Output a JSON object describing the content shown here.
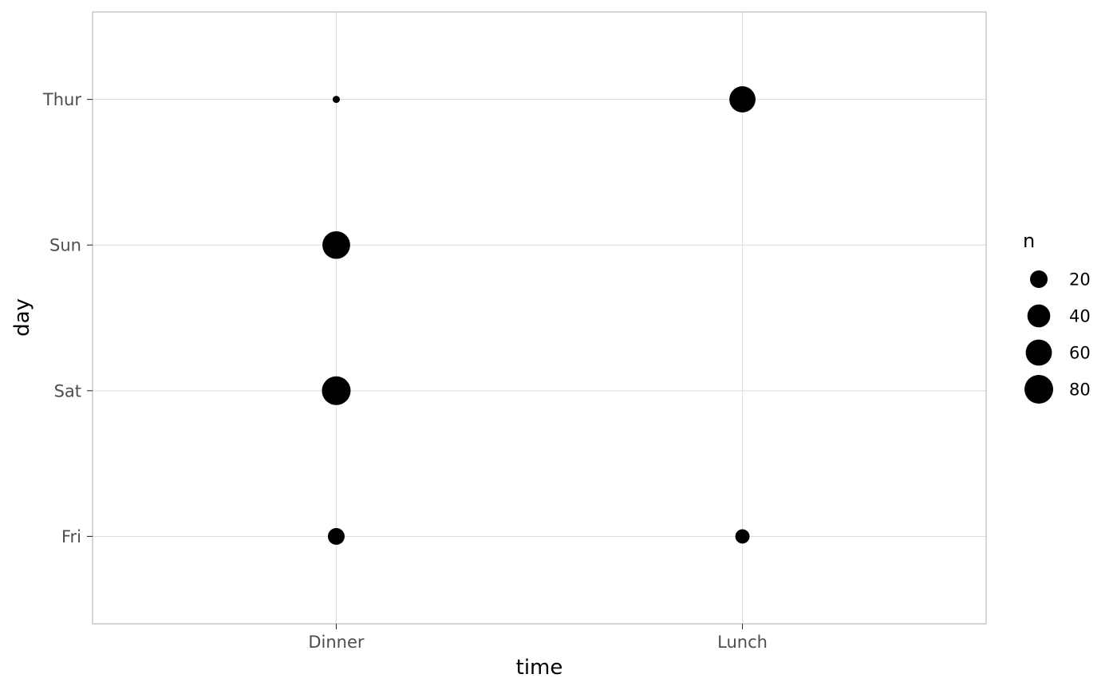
{
  "chart_data": {
    "type": "scatter",
    "title": "",
    "xlabel": "time",
    "ylabel": "day",
    "x_categories": [
      "Dinner",
      "Lunch"
    ],
    "y_categories": [
      "Fri",
      "Sat",
      "Sun",
      "Thur"
    ],
    "size_variable": "n",
    "points": [
      {
        "x": "Dinner",
        "y": "Thur",
        "n": 1
      },
      {
        "x": "Dinner",
        "y": "Sun",
        "n": 76
      },
      {
        "x": "Dinner",
        "y": "Sat",
        "n": 87
      },
      {
        "x": "Dinner",
        "y": "Fri",
        "n": 12
      },
      {
        "x": "Lunch",
        "y": "Thur",
        "n": 61
      },
      {
        "x": "Lunch",
        "y": "Fri",
        "n": 7
      }
    ],
    "legend": {
      "title": "n",
      "position": "right",
      "breaks": [
        20,
        40,
        60,
        80
      ],
      "labels": [
        "20",
        "40",
        "60",
        "80"
      ]
    },
    "grid": true,
    "point_color": "#000000",
    "grid_color": "#dedede",
    "border_color": "#b3b3b3"
  }
}
